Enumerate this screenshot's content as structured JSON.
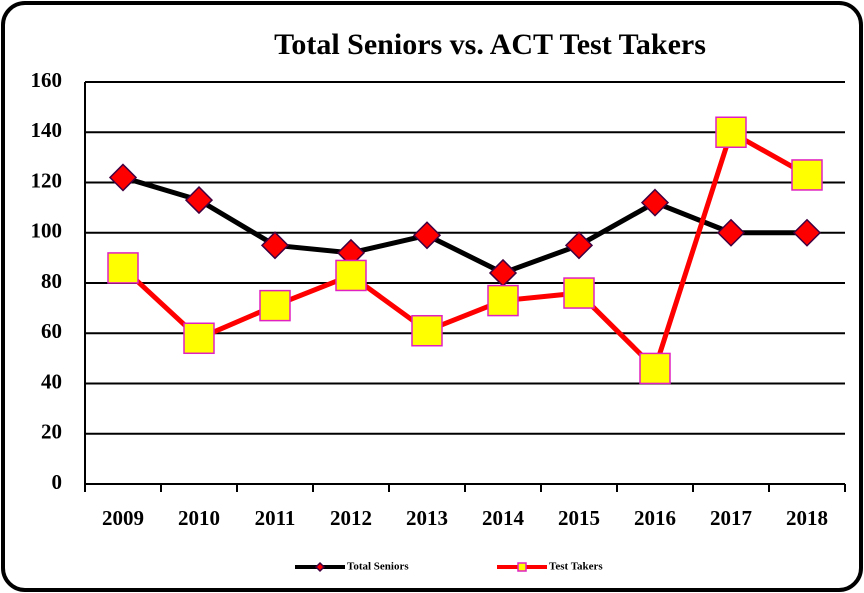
{
  "chart_data": {
    "type": "line",
    "title": "Total Seniors vs. ACT Test Takers",
    "categories": [
      "2009",
      "2010",
      "2011",
      "2012",
      "2013",
      "2014",
      "2015",
      "2016",
      "2017",
      "2018"
    ],
    "series": [
      {
        "name": "Total Seniors",
        "color": "#000000",
        "marker": "diamond",
        "marker_color": "#ff0000",
        "values": [
          122,
          113,
          95,
          92,
          99,
          84,
          95,
          112,
          100,
          100
        ]
      },
      {
        "name": "Test Takers",
        "color": "#ff0000",
        "marker": "square",
        "marker_color": "#ffff00",
        "values": [
          86,
          58,
          71,
          83,
          61,
          73,
          76,
          46,
          140,
          123
        ]
      }
    ],
    "ylim": [
      0,
      160
    ],
    "yticks": [
      0,
      20,
      40,
      60,
      80,
      100,
      120,
      140,
      160
    ],
    "grid": true,
    "legend": "bottom"
  }
}
